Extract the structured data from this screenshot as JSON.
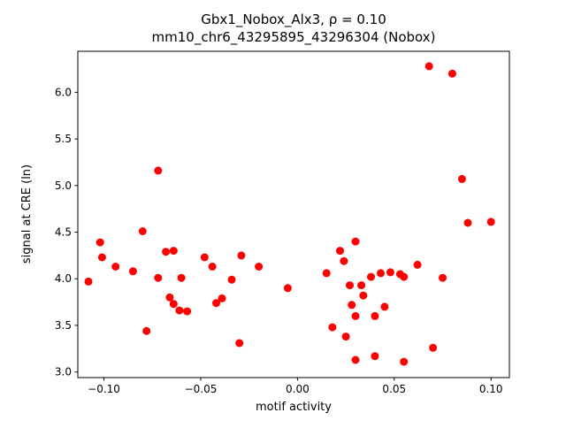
{
  "chart_data": {
    "type": "scatter",
    "title_line1": "Gbx1_Nobox_Alx3, ρ = 0.10",
    "title_line2": "mm10_chr6_43295895_43296304 (Nobox)",
    "xlabel": "motif activity",
    "ylabel": "signal at CRE (ln)",
    "xlim": [
      -0.1135,
      0.1095
    ],
    "ylim": [
      2.94,
      6.44
    ],
    "grid": false,
    "legend": "none",
    "marker_color": "#ff0000",
    "xticks": [
      {
        "value": -0.1,
        "label": "−0.10"
      },
      {
        "value": -0.05,
        "label": "−0.05"
      },
      {
        "value": 0.0,
        "label": "0.00"
      },
      {
        "value": 0.05,
        "label": "0.05"
      },
      {
        "value": 0.1,
        "label": "0.10"
      }
    ],
    "yticks": [
      {
        "value": 3.0,
        "label": "3.0"
      },
      {
        "value": 3.5,
        "label": "3.5"
      },
      {
        "value": 4.0,
        "label": "4.0"
      },
      {
        "value": 4.5,
        "label": "4.5"
      },
      {
        "value": 5.0,
        "label": "5.0"
      },
      {
        "value": 5.5,
        "label": "5.5"
      },
      {
        "value": 6.0,
        "label": "6.0"
      }
    ],
    "points": [
      [
        -0.108,
        3.97
      ],
      [
        -0.102,
        4.39
      ],
      [
        -0.101,
        4.23
      ],
      [
        -0.094,
        4.13
      ],
      [
        -0.085,
        4.08
      ],
      [
        -0.08,
        4.51
      ],
      [
        -0.078,
        3.44
      ],
      [
        -0.072,
        5.16
      ],
      [
        -0.072,
        4.01
      ],
      [
        -0.068,
        4.29
      ],
      [
        -0.064,
        4.3
      ],
      [
        -0.066,
        3.8
      ],
      [
        -0.064,
        3.73
      ],
      [
        -0.06,
        4.01
      ],
      [
        -0.061,
        3.66
      ],
      [
        -0.057,
        3.65
      ],
      [
        -0.048,
        4.23
      ],
      [
        -0.044,
        4.13
      ],
      [
        -0.042,
        3.74
      ],
      [
        -0.039,
        3.79
      ],
      [
        -0.034,
        3.99
      ],
      [
        -0.029,
        4.25
      ],
      [
        -0.03,
        3.31
      ],
      [
        -0.02,
        4.13
      ],
      [
        -0.005,
        3.9
      ],
      [
        0.015,
        4.06
      ],
      [
        0.018,
        3.48
      ],
      [
        0.022,
        4.3
      ],
      [
        0.024,
        4.19
      ],
      [
        0.025,
        3.38
      ],
      [
        0.027,
        3.93
      ],
      [
        0.028,
        3.72
      ],
      [
        0.03,
        4.4
      ],
      [
        0.03,
        3.6
      ],
      [
        0.03,
        3.13
      ],
      [
        0.033,
        3.93
      ],
      [
        0.034,
        3.82
      ],
      [
        0.038,
        4.02
      ],
      [
        0.04,
        3.6
      ],
      [
        0.04,
        3.17
      ],
      [
        0.043,
        4.06
      ],
      [
        0.045,
        3.7
      ],
      [
        0.048,
        4.07
      ],
      [
        0.053,
        4.05
      ],
      [
        0.055,
        4.02
      ],
      [
        0.055,
        3.11
      ],
      [
        0.062,
        4.15
      ],
      [
        0.068,
        6.28
      ],
      [
        0.07,
        3.26
      ],
      [
        0.075,
        4.01
      ],
      [
        0.08,
        6.2
      ],
      [
        0.085,
        5.07
      ],
      [
        0.088,
        4.6
      ],
      [
        0.1,
        4.61
      ]
    ]
  }
}
